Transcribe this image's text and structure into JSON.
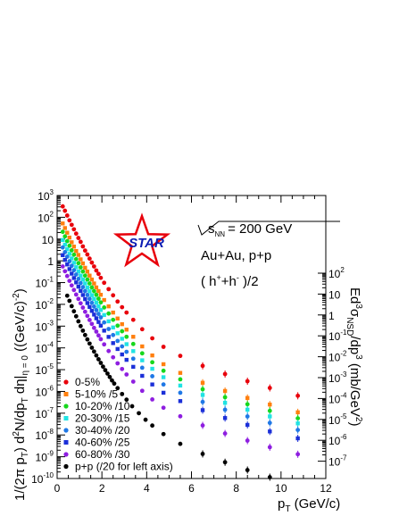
{
  "chart_data": {
    "type": "scatter",
    "xlabel": "p_T (GeV/c)",
    "ylabel_left": "1/(2π p_T)  d^2N/dp_T dη|_{η = 0} ((GeV/c)^{-2})",
    "ylabel_right": "Ed^3σ_{NSD}/dp^3 (mb/GeV^2)",
    "x_axis": {
      "range": [
        0,
        12
      ],
      "ticks": [
        0,
        2,
        4,
        6,
        8,
        10,
        12
      ]
    },
    "y_axis_left": {
      "scale": "log",
      "range": [
        1e-10,
        1000
      ],
      "tick_exponents": [
        -10,
        -9,
        -8,
        -7,
        -6,
        -5,
        -4,
        -3,
        -2,
        -1,
        0,
        1,
        2,
        3
      ],
      "tick_labels": [
        "10^-10",
        "10^-9",
        "10^-8",
        "10^-7",
        "10^-6",
        "10^-5",
        "10^-4",
        "10^-3",
        "10^-2",
        "10^-1",
        "1",
        "10",
        "10^2",
        "10^3"
      ]
    },
    "y_axis_right": {
      "scale": "log",
      "tick_exponents": [
        2,
        1,
        0,
        -1,
        -2,
        -3,
        -4,
        -5,
        -6,
        -7
      ],
      "tick_labels": [
        "10^2",
        "10",
        "1",
        "10^-1",
        "10^-2",
        "10^-3",
        "10^-4",
        "10^-5",
        "10^-6",
        "10^-7"
      ]
    },
    "annotations": {
      "energy": "√s_NN = 200 GeV",
      "system": "Au+Au, p+p",
      "particles": "( h^+ + h^- )/2",
      "logo": "STAR"
    },
    "legend_position": "bottom-left",
    "grid": false,
    "series": [
      {
        "name": "0-5%",
        "color": "#e8000b",
        "marker": "circle",
        "x": [
          0.25,
          0.35,
          0.45,
          0.55,
          0.65,
          0.75,
          0.85,
          0.95,
          1.05,
          1.15,
          1.25,
          1.35,
          1.45,
          1.55,
          1.65,
          1.75,
          1.85,
          1.95,
          2.1,
          2.3,
          2.5,
          2.7,
          2.9,
          3.1,
          3.4,
          3.8,
          4.25,
          4.75,
          5.5,
          6.5,
          7.5,
          8.5,
          9.5,
          10.75
        ],
        "y": [
          316,
          200,
          120,
          72,
          45,
          28,
          17.8,
          11.2,
          7.4,
          4.6,
          2.95,
          1.95,
          1.26,
          0.83,
          0.55,
          0.36,
          0.25,
          0.165,
          0.098,
          0.05,
          0.026,
          0.0135,
          0.0074,
          0.0042,
          0.00195,
          0.00072,
          0.000275,
          0.000112,
          4.3e-05,
          1.5e-05,
          6.3e-06,
          2.95e-06,
          1.45e-06,
          6.3e-07
        ]
      },
      {
        "name": "5-10% /5",
        "color": "#ff7f0e",
        "marker": "square",
        "x": [
          0.25,
          0.35,
          0.45,
          0.55,
          0.65,
          0.75,
          0.85,
          0.95,
          1.05,
          1.15,
          1.25,
          1.35,
          1.45,
          1.55,
          1.65,
          1.75,
          1.85,
          1.95,
          2.1,
          2.3,
          2.5,
          2.7,
          2.9,
          3.1,
          3.4,
          3.8,
          4.25,
          4.75,
          5.5,
          6.5,
          7.5,
          8.5,
          9.5,
          10.75
        ],
        "y": [
          52,
          32,
          19.5,
          11.7,
          7.1,
          4.5,
          2.82,
          1.86,
          1.17,
          0.76,
          0.48,
          0.32,
          0.209,
          0.138,
          0.091,
          0.06,
          0.0407,
          0.0275,
          0.0158,
          0.0081,
          0.0042,
          0.00224,
          0.00123,
          0.00069,
          0.000324,
          0.000117,
          4.5e-05,
          1.78e-05,
          7.1e-06,
          2.5e-06,
          1.05e-06,
          5e-07,
          2.5e-07,
          1.1e-07
        ]
      },
      {
        "name": "10-20% /10",
        "color": "#17d71d",
        "marker": "circle",
        "x": [
          0.25,
          0.35,
          0.45,
          0.55,
          0.65,
          0.75,
          0.85,
          0.95,
          1.05,
          1.15,
          1.25,
          1.35,
          1.45,
          1.55,
          1.65,
          1.75,
          1.85,
          1.95,
          2.1,
          2.3,
          2.5,
          2.7,
          2.9,
          3.1,
          3.4,
          3.8,
          4.25,
          4.75,
          5.5,
          6.5,
          7.5,
          8.5,
          9.5,
          10.75
        ],
        "y": [
          21.5,
          13.2,
          8,
          4.9,
          3.02,
          1.91,
          1.2,
          0.78,
          0.5,
          0.324,
          0.209,
          0.138,
          0.091,
          0.06,
          0.0407,
          0.0275,
          0.0182,
          0.0123,
          0.0072,
          0.0038,
          0.00195,
          0.00105,
          0.00058,
          0.000324,
          0.000151,
          5.6e-05,
          2.19e-05,
          8.9e-06,
          3.6e-06,
          1.26e-06,
          5.4e-07,
          2.57e-07,
          1.29e-07,
          5.8e-08
        ]
      },
      {
        "name": "20-30% /15",
        "color": "#20e3e3",
        "marker": "square",
        "x": [
          0.25,
          0.35,
          0.45,
          0.55,
          0.65,
          0.75,
          0.85,
          0.95,
          1.05,
          1.15,
          1.25,
          1.35,
          1.45,
          1.55,
          1.65,
          1.75,
          1.85,
          1.95,
          2.1,
          2.3,
          2.5,
          2.7,
          2.9,
          3.1,
          3.4,
          3.8,
          4.25,
          4.75,
          5.5,
          6.5,
          7.5,
          8.5,
          9.5,
          10.75
        ],
        "y": [
          9,
          5.5,
          3.39,
          2.09,
          1.29,
          0.81,
          0.51,
          0.324,
          0.209,
          0.138,
          0.091,
          0.059,
          0.0398,
          0.0263,
          0.0178,
          0.012,
          0.0081,
          0.0055,
          0.00324,
          0.00166,
          0.00087,
          0.00047,
          0.000263,
          0.000148,
          7.1e-05,
          2.69e-05,
          1.1e-05,
          4.5e-06,
          1.86e-06,
          6.9e-07,
          3e-07,
          1.45e-07,
          7.1e-08,
          3.4e-08
        ]
      },
      {
        "name": "30-40% /20",
        "color": "#1f78e6",
        "marker": "circle",
        "x": [
          0.25,
          0.35,
          0.45,
          0.55,
          0.65,
          0.75,
          0.85,
          0.95,
          1.05,
          1.15,
          1.25,
          1.35,
          1.45,
          1.55,
          1.65,
          1.75,
          1.85,
          1.95,
          2.1,
          2.3,
          2.5,
          2.7,
          2.9,
          3.1,
          3.4,
          3.8,
          4.25,
          4.75,
          5.5,
          6.5,
          7.5,
          8.5,
          9.5,
          10.75
        ],
        "y": [
          4.1,
          2.51,
          1.55,
          0.95,
          0.59,
          0.371,
          0.234,
          0.148,
          0.095,
          0.062,
          0.0407,
          0.0269,
          0.0178,
          0.0118,
          0.0079,
          0.0054,
          0.00363,
          0.00251,
          0.00148,
          0.00074,
          0.00039,
          0.000209,
          0.000117,
          6.6e-05,
          3.2e-05,
          1.23e-05,
          5e-06,
          2.09e-06,
          8.7e-07,
          3.3e-07,
          1.45e-07,
          7.1e-08,
          3.6e-08,
          1.7e-08
        ]
      },
      {
        "name": "40-60% /25",
        "color": "#1b2fd8",
        "marker": "square",
        "x": [
          0.25,
          0.35,
          0.45,
          0.55,
          0.65,
          0.75,
          0.85,
          0.95,
          1.05,
          1.15,
          1.25,
          1.35,
          1.45,
          1.55,
          1.65,
          1.75,
          1.85,
          1.95,
          2.1,
          2.3,
          2.5,
          2.7,
          2.9,
          3.1,
          3.4,
          3.8,
          4.25,
          4.75,
          5.5,
          6.5,
          7.5,
          8.5,
          9.5,
          10.75
        ],
        "y": [
          1.82,
          1.1,
          0.68,
          0.417,
          0.257,
          0.162,
          0.102,
          0.065,
          0.0417,
          0.0269,
          0.0174,
          0.0115,
          0.0076,
          0.00501,
          0.00339,
          0.00229,
          0.00155,
          0.00105,
          0.00062,
          0.00032,
          0.000166,
          8.9e-05,
          5e-05,
          2.82e-05,
          1.35e-05,
          5.2e-06,
          2.09e-06,
          8.7e-07,
          3.6e-07,
          1.38e-07,
          6e-08,
          2.9e-08,
          1.45e-08,
          7e-09
        ]
      },
      {
        "name": "60-80% /30",
        "color": "#8e1ee0",
        "marker": "circle",
        "x": [
          0.25,
          0.35,
          0.45,
          0.55,
          0.65,
          0.75,
          0.85,
          0.95,
          1.05,
          1.15,
          1.25,
          1.35,
          1.45,
          1.55,
          1.65,
          1.75,
          1.85,
          1.95,
          2.1,
          2.3,
          2.5,
          2.7,
          2.9,
          3.1,
          3.4,
          3.8,
          4.25,
          4.75,
          5.5,
          6.5,
          7.5,
          8.5,
          9.5,
          10.75
        ],
        "y": [
          0.55,
          0.331,
          0.2,
          0.12,
          0.074,
          0.0457,
          0.0282,
          0.0178,
          0.0112,
          0.0071,
          0.00457,
          0.00295,
          0.00191,
          0.00126,
          0.00083,
          0.00056,
          0.000372,
          0.000251,
          0.000145,
          7.2e-05,
          3.7e-05,
          1.95e-05,
          1.07e-05,
          6e-06,
          2.82e-06,
          1.07e-06,
          4.3e-07,
          1.78e-07,
          7.2e-08,
          2.75e-08,
          1.17e-08,
          5.5e-09,
          2.75e-09,
          1.3e-09
        ]
      },
      {
        "name": "p+p (/20 for left axis)",
        "color": "#000000",
        "marker": "circle",
        "x": [
          0.45,
          0.55,
          0.65,
          0.75,
          0.85,
          0.95,
          1.05,
          1.15,
          1.25,
          1.35,
          1.45,
          1.55,
          1.65,
          1.75,
          1.85,
          1.95,
          2.05,
          2.15,
          2.25,
          2.35,
          2.45,
          2.55,
          2.7,
          2.9,
          3.1,
          3.35,
          3.65,
          3.95,
          4.25,
          4.75,
          5.5,
          6.5,
          7.5,
          8.5,
          9.5
        ],
        "y": [
          0.025,
          0.0145,
          0.0083,
          0.0048,
          0.00282,
          0.00166,
          0.001,
          0.00062,
          0.000389,
          0.000245,
          0.000158,
          0.000102,
          6.8e-05,
          4.5e-05,
          3e-05,
          2.04e-05,
          1.38e-05,
          9.5e-06,
          6.6e-06,
          4.6e-06,
          3.2e-06,
          2.29e-06,
          1.41e-06,
          7.6e-07,
          4.2e-07,
          2.09e-07,
          1e-07,
          5e-08,
          2.7e-08,
          1.1e-08,
          3.9e-09,
          1.35e-09,
          5.6e-10,
          2.45e-10,
          1.15e-10
        ]
      }
    ]
  }
}
